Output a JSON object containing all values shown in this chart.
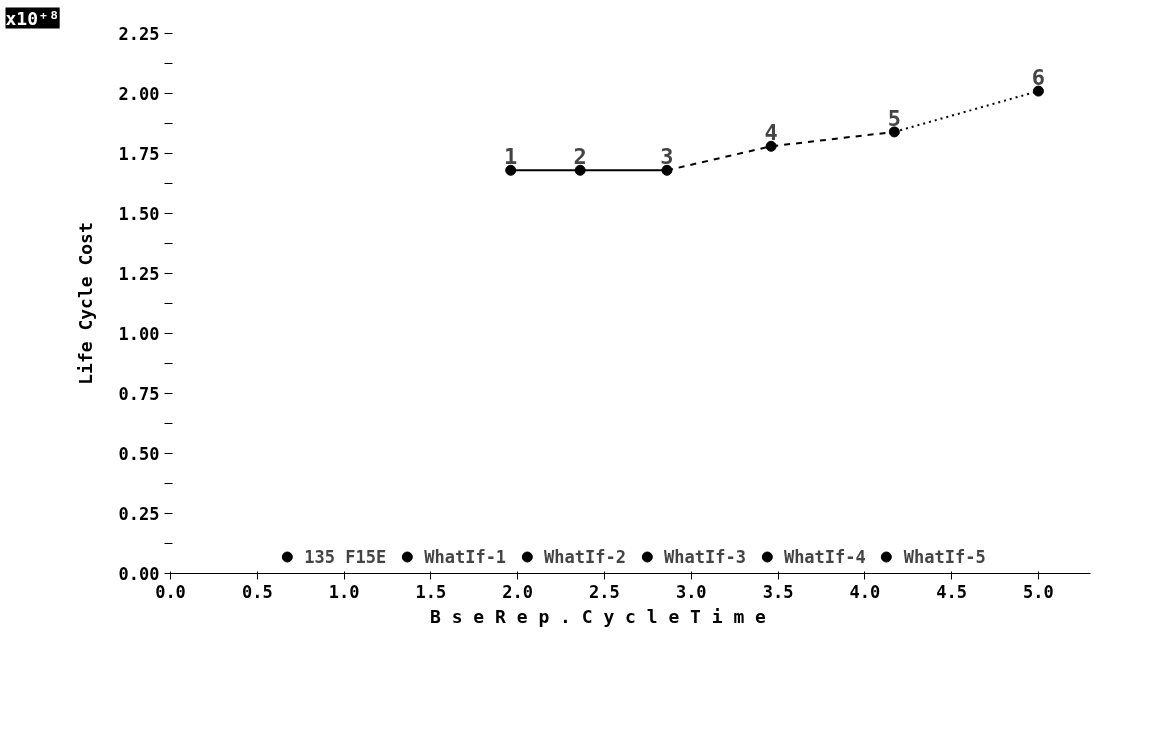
{
  "chart_data": {
    "type": "scatter",
    "xlabel": "B s e   R e p .   C y c l e   T i m e",
    "ylabel": "Life Cycle Cost",
    "xlim": [
      0,
      5.3
    ],
    "ylim": [
      0,
      2.25
    ],
    "xticks": [
      {
        "value": 0,
        "label": "0.0"
      },
      0.5,
      {
        "value": 1,
        "label": "1.0"
      },
      1.5,
      {
        "value": 2,
        "label": "2.0"
      },
      2.5,
      {
        "value": 3,
        "label": "3.0"
      },
      3.5,
      {
        "value": 4,
        "label": "4.0"
      },
      4.5,
      {
        "value": 5,
        "label": "5.0"
      }
    ],
    "yticks": [
      {
        "value": 0,
        "label": "0.00"
      },
      {
        "value": 0.125,
        "label": null
      },
      0.25,
      {
        "value": 0.375,
        "label": null
      },
      {
        "value": 0.5,
        "label": "0.50"
      },
      {
        "value": 0.625,
        "label": null
      },
      0.75,
      {
        "value": 0.875,
        "label": null
      },
      {
        "value": 1,
        "label": "1.00"
      },
      {
        "value": 1.125,
        "label": null
      },
      1.25,
      {
        "value": 1.375,
        "label": null
      },
      {
        "value": 1.5,
        "label": "1.50"
      },
      {
        "value": 1.625,
        "label": null
      },
      1.75,
      {
        "value": 1.875,
        "label": null
      },
      {
        "value": 2,
        "label": "2.00"
      },
      {
        "value": 2.125,
        "label": null
      },
      2.25
    ],
    "grid": false,
    "legend": "bottom",
    "marker": "circle",
    "series": [
      {
        "name": "135 F15E",
        "color": "#000000",
        "x": [
          1.96
        ],
        "values": [
          1.68
        ]
      },
      {
        "name": "WhatIf-1",
        "color": "#000000",
        "x": [
          2.36
        ],
        "values": [
          1.68
        ]
      },
      {
        "name": "WhatIf-2",
        "color": "#000000",
        "x": [
          2.86
        ],
        "values": [
          1.68
        ]
      },
      {
        "name": "WhatIf-3",
        "color": "#000000",
        "x": [
          3.46
        ],
        "values": [
          1.78
        ]
      },
      {
        "name": "WhatIf-4",
        "color": "#000000",
        "x": [
          4.17
        ],
        "values": [
          1.84
        ]
      },
      {
        "name": "WhatIf-5",
        "color": "#000000",
        "x": [
          5.0
        ],
        "values": [
          2.01
        ]
      },
      {
        "type": "line",
        "marker": "none",
        "color": "#000000",
        "line_style": "solid",
        "x": [
          1.96,
          2.36,
          2.86
        ],
        "values": [
          1.68,
          1.68,
          1.68
        ]
      },
      {
        "type": "line",
        "marker": "none",
        "color": "#000000",
        "line_style": "dashed",
        "x": [
          2.86,
          3.46,
          4.17
        ],
        "values": [
          1.68,
          1.78,
          1.84
        ]
      },
      {
        "type": "line",
        "marker": "none",
        "color": "#000000",
        "line_style": "dotted",
        "x": [
          4.17,
          5.0
        ],
        "values": [
          1.84,
          2.01
        ]
      }
    ],
    "annotations": [
      "x10⁺⁸",
      {
        "text": "1",
        "x": 1.96,
        "y": 1.68
      },
      {
        "text": "2",
        "x": 2.36,
        "y": 1.68
      },
      {
        "text": "3",
        "x": 2.86,
        "y": 1.68
      },
      {
        "text": "4",
        "x": 3.46,
        "y": 1.78
      },
      {
        "text": "5",
        "x": 4.17,
        "y": 1.84
      },
      {
        "text": "6",
        "x": 5.0,
        "y": 2.01
      }
    ]
  }
}
